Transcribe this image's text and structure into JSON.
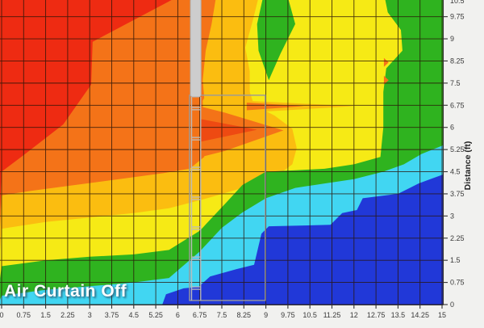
{
  "chart_data": {
    "type": "heatmap",
    "subtype": "filled-contour-temperature-map",
    "title": "Air Curtain Off",
    "xlabel": "",
    "ylabel": "Distance (ft)",
    "x_range": [
      0,
      15
    ],
    "y_range": [
      0,
      10.32
    ],
    "x_tick_step": 0.75,
    "y_tick_step": 0.75,
    "grid": true,
    "y_axis_side": "right",
    "x_tick_labels": [
      "0",
      "0.75",
      "1.5",
      "2.25",
      "3",
      "3.75",
      "4.5",
      "5.25",
      "6",
      "6.75",
      "7.5",
      "8.25",
      "9",
      "9.75",
      "10.5",
      "11.25",
      "12",
      "12.75",
      "13.5",
      "14.25",
      "15"
    ],
    "y_tick_labels": [
      "0",
      "0.75",
      "1.5",
      "2.25",
      "3",
      "3.75",
      "4.5",
      "5.25",
      "6",
      "6.75",
      "7.5",
      "8.25",
      "9",
      "9.75"
    ],
    "y_tick_label_partial_top": "10.5",
    "palette": {
      "red": "#ee2b12",
      "orange": "#f47318",
      "amber": "#fbbd10",
      "yellow": "#f6ea15",
      "green": "#2fb31f",
      "cyan": "#41d6f2",
      "blue": "#2138d8",
      "hot_core": "#ee4a12",
      "grid_line": "#2a1408",
      "axis_line": "#333333",
      "tick_text": "#3a3a3a",
      "door_bar_fill": "#cdcdcd",
      "door_stroke": "#9a9a9a",
      "ladder_stroke": "#bcbcbc",
      "margin_bg": "#f1f1ef"
    },
    "bands": [
      {
        "name": "base-hot",
        "color": "red",
        "base": true
      },
      {
        "name": "orange-region",
        "color": "orange",
        "points": [
          [
            0,
            4.5
          ],
          [
            0.8,
            5.1
          ],
          [
            2.1,
            6.1
          ],
          [
            3.05,
            7.45
          ],
          [
            3.1,
            8.9
          ],
          [
            5.95,
            10.4
          ],
          [
            15.3,
            10.4
          ],
          [
            15.3,
            -0.2
          ],
          [
            -0.2,
            -0.2
          ]
        ]
      },
      {
        "name": "amber-region",
        "color": "amber",
        "points": [
          [
            0,
            3.7
          ],
          [
            1,
            3.85
          ],
          [
            2.5,
            4.05
          ],
          [
            4,
            4.25
          ],
          [
            5.5,
            4.45
          ],
          [
            6.4,
            4.6
          ],
          [
            6.9,
            5.0
          ],
          [
            6.85,
            6.9
          ],
          [
            6.9,
            7.0
          ],
          [
            6.85,
            7.6
          ],
          [
            6.95,
            8.6
          ],
          [
            7.15,
            9.5
          ],
          [
            7.3,
            10.4
          ],
          [
            15.3,
            10.4
          ],
          [
            15.3,
            -0.2
          ],
          [
            -0.2,
            -0.2
          ]
        ]
      },
      {
        "name": "yellow-region",
        "color": "yellow",
        "points": [
          [
            0,
            2.57
          ],
          [
            1.5,
            2.8
          ],
          [
            3,
            2.95
          ],
          [
            4.5,
            3.1
          ],
          [
            5.7,
            3.26
          ],
          [
            7,
            3.6
          ],
          [
            8.2,
            3.95
          ],
          [
            9.3,
            4.3
          ],
          [
            9.9,
            4.75
          ],
          [
            10.05,
            5.3
          ],
          [
            9.9,
            5.95
          ],
          [
            9.3,
            6.4
          ],
          [
            8.6,
            6.75
          ],
          [
            8.45,
            7.2
          ],
          [
            8.45,
            7.9
          ],
          [
            8.3,
            8.7
          ],
          [
            8.55,
            9.6
          ],
          [
            8.75,
            10.4
          ],
          [
            15.3,
            10.4
          ],
          [
            15.3,
            -0.2
          ],
          [
            -0.2,
            -0.2
          ]
        ]
      },
      {
        "name": "green-region",
        "color": "green",
        "points": [
          [
            0,
            1.3
          ],
          [
            1.5,
            1.5
          ],
          [
            3,
            1.62
          ],
          [
            4.5,
            1.7
          ],
          [
            5.7,
            1.85
          ],
          [
            6.75,
            2.5
          ],
          [
            7.6,
            3.4
          ],
          [
            8.2,
            4.05
          ],
          [
            9.0,
            4.5
          ],
          [
            10,
            4.55
          ],
          [
            11,
            4.6
          ],
          [
            12,
            4.75
          ],
          [
            12.9,
            5.0
          ],
          [
            13.0,
            6.0
          ],
          [
            13.0,
            7.2
          ],
          [
            13.1,
            8.0
          ],
          [
            13.65,
            8.6
          ],
          [
            13.6,
            9.3
          ],
          [
            13.15,
            9.9
          ],
          [
            13.05,
            10.4
          ],
          [
            15.3,
            10.4
          ],
          [
            15.3,
            -0.2
          ],
          [
            -0.2,
            -0.2
          ]
        ]
      },
      {
        "name": "cyan-region",
        "color": "cyan",
        "points": [
          [
            0,
            0.3
          ],
          [
            1.5,
            0.5
          ],
          [
            3,
            0.62
          ],
          [
            4.5,
            0.75
          ],
          [
            5.7,
            0.9
          ],
          [
            6.75,
            1.8
          ],
          [
            7.5,
            2.6
          ],
          [
            8.2,
            3.12
          ],
          [
            9,
            3.6
          ],
          [
            10,
            3.95
          ],
          [
            11,
            4.1
          ],
          [
            12,
            4.25
          ],
          [
            13,
            4.5
          ],
          [
            13.7,
            4.75
          ],
          [
            14.3,
            5.1
          ],
          [
            15.3,
            5.5
          ],
          [
            15.3,
            -0.2
          ],
          [
            -0.2,
            -0.2
          ]
        ]
      },
      {
        "name": "blue-region",
        "color": "blue",
        "points": [
          [
            5.4,
            -0.2
          ],
          [
            5.6,
            0.35
          ],
          [
            6.2,
            0.55
          ],
          [
            6.7,
            0.6
          ],
          [
            7.1,
            0.95
          ],
          [
            8.0,
            1.2
          ],
          [
            8.6,
            1.35
          ],
          [
            8.85,
            2.4
          ],
          [
            9.1,
            2.65
          ],
          [
            11.2,
            2.7
          ],
          [
            11.6,
            3.1
          ],
          [
            12.1,
            3.2
          ],
          [
            12.3,
            3.6
          ],
          [
            13.5,
            3.75
          ],
          [
            14.2,
            4.1
          ],
          [
            14.6,
            4.25
          ],
          [
            15.3,
            4.5
          ],
          [
            15.3,
            -0.2
          ]
        ]
      },
      {
        "name": "green-enclave-top",
        "color": "green",
        "points": [
          [
            8.9,
            10.4
          ],
          [
            9.75,
            10.4
          ],
          [
            10.0,
            9.5
          ],
          [
            9.5,
            8.5
          ],
          [
            9.1,
            7.6
          ],
          [
            8.75,
            8.6
          ],
          [
            8.7,
            9.5
          ]
        ]
      },
      {
        "name": "amber-jet-streak",
        "color": "amber",
        "points": [
          [
            8.35,
            6.9
          ],
          [
            12.0,
            6.72
          ],
          [
            8.35,
            6.5
          ]
        ]
      },
      {
        "name": "orange-jet-streak",
        "color": "orange",
        "points": [
          [
            8.35,
            6.84
          ],
          [
            10.3,
            6.72
          ],
          [
            8.35,
            6.58
          ]
        ]
      },
      {
        "name": "orange-door-wedge",
        "color": "orange",
        "points": [
          [
            6.8,
            6.7
          ],
          [
            7.6,
            6.5
          ],
          [
            9.6,
            5.9
          ],
          [
            7.6,
            5.2
          ],
          [
            6.8,
            5.0
          ]
        ]
      },
      {
        "name": "hot-core-wedge",
        "color": "hot_core",
        "points": [
          [
            6.8,
            6.28
          ],
          [
            8.7,
            5.92
          ],
          [
            6.8,
            5.52
          ]
        ]
      },
      {
        "name": "orange-speck-1",
        "color": "orange",
        "points": [
          [
            13.02,
            8.35
          ],
          [
            13.18,
            8.2
          ],
          [
            13.02,
            8.05
          ]
        ]
      },
      {
        "name": "orange-speck-2",
        "color": "orange",
        "points": [
          [
            13.02,
            7.75
          ],
          [
            13.18,
            7.6
          ],
          [
            13.02,
            7.45
          ]
        ]
      }
    ],
    "overlays": {
      "air_curtain_bar": {
        "x1": 6.43,
        "x2": 6.79,
        "y_top": 10.4,
        "y_bottom": 7.03
      },
      "case_frame": {
        "x1": 6.4,
        "x2": 8.98,
        "y1": 0.14,
        "y2": 7.09
      },
      "ladder": {
        "x1": 6.47,
        "x2": 6.78,
        "y_top": 7.03,
        "y_bottom": 0.14,
        "rung_y": [
          6.68,
          5.66,
          4.65,
          3.64,
          2.63,
          1.61,
          0.6
        ]
      }
    }
  }
}
